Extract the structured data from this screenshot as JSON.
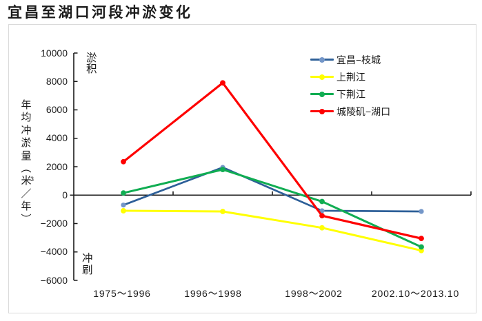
{
  "title": "宜昌至湖口河段冲淤变化",
  "y_axis": {
    "title": "年均冲淤量（米³／年）"
  },
  "annotations": {
    "deposition": "淤积",
    "erosion": "冲刷"
  },
  "chart_data": {
    "type": "line",
    "title": "宜昌至湖口河段冲淤变化",
    "xlabel": "",
    "ylabel": "年均冲淤量（米³／年）",
    "ylim": [
      -6000,
      10000
    ],
    "ytick_step": 2000,
    "grid": false,
    "legend_position": "top-right",
    "categories": [
      "1975～1996",
      "1996～1998",
      "1998～2002",
      "2002.10～2013.10"
    ],
    "series": [
      {
        "name": "宜昌−枝城",
        "color": "#2d5f98",
        "marker_color": "#7396c8",
        "values": [
          -700,
          1950,
          -1100,
          -1150
        ]
      },
      {
        "name": "上荆江",
        "color": "#ffff00",
        "marker_color": "#ffff00",
        "values": [
          -1100,
          -1150,
          -2300,
          -3900
        ]
      },
      {
        "name": "下荆江",
        "color": "#10ad52",
        "marker_color": "#10ad52",
        "values": [
          150,
          1800,
          -450,
          -3650
        ]
      },
      {
        "name": "城陵矶−湖口",
        "color": "#fe0000",
        "marker_color": "#fe0000",
        "values": [
          2350,
          7900,
          -1450,
          -3050
        ]
      }
    ]
  }
}
